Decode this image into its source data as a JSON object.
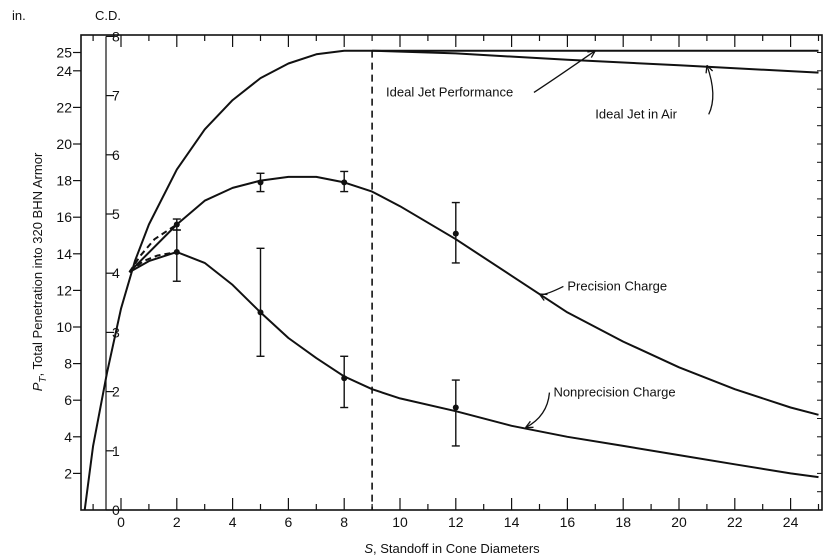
{
  "chart_data": {
    "type": "line",
    "title": "",
    "xlabel": "S, Standoff in Cone Diameters",
    "ylabel": "PT, Total Penetration into 320 BHN Armor",
    "xlim": [
      -1.5,
      25
    ],
    "ylim": [
      0,
      25
    ],
    "y_unit_label": "in.",
    "y2_unit_label": "C.D.",
    "x_ticks": [
      "0",
      "2",
      "4",
      "6",
      "8",
      "10",
      "12",
      "14",
      "16",
      "18",
      "20",
      "22",
      "24"
    ],
    "y_ticks": [
      "2",
      "4",
      "6",
      "8",
      "10",
      "12",
      "14",
      "16",
      "18",
      "20",
      "22",
      "24",
      "25"
    ],
    "y2_ticks": [
      "0",
      "1",
      "2",
      "3",
      "4",
      "5",
      "6",
      "7",
      "8"
    ],
    "vline_x": 9,
    "series": [
      {
        "name": "Ideal Jet Performance",
        "x": [
          -1.3,
          -1.0,
          -0.5,
          0.0,
          0.5,
          1.0,
          2.0,
          3.0,
          4.0,
          5.0,
          6.0,
          7.0,
          8.0,
          9.0,
          12.0,
          16.0,
          20.0,
          25.0
        ],
        "y": [
          0.0,
          3.5,
          7.5,
          11.0,
          13.6,
          15.6,
          18.6,
          20.8,
          22.4,
          23.6,
          24.4,
          24.9,
          25.1,
          25.1,
          25.1,
          25.1,
          25.1,
          25.1
        ]
      },
      {
        "name": "Ideal Jet in Air",
        "x": [
          9.0,
          12.0,
          16.0,
          20.0,
          25.0
        ],
        "y": [
          25.1,
          24.95,
          24.6,
          24.3,
          23.9
        ]
      },
      {
        "name": "Precision Charge",
        "x": [
          0.3,
          2.0,
          3.0,
          4.0,
          5.0,
          6.0,
          7.0,
          8.0,
          9.0,
          10.0,
          12.0,
          14.0,
          16.0,
          18.0,
          20.0,
          22.0,
          24.0,
          25.0
        ],
        "y": [
          13.0,
          15.6,
          16.9,
          17.6,
          18.0,
          18.2,
          18.2,
          17.9,
          17.4,
          16.6,
          14.8,
          12.8,
          10.8,
          9.2,
          7.8,
          6.6,
          5.6,
          5.2
        ]
      },
      {
        "name": "Nonprecision Charge",
        "x": [
          0.3,
          1.0,
          2.0,
          3.0,
          4.0,
          5.0,
          6.0,
          7.0,
          8.0,
          9.0,
          10.0,
          12.0,
          14.0,
          16.0,
          18.0,
          20.0,
          22.0,
          24.0,
          25.0
        ],
        "y": [
          13.0,
          13.6,
          14.1,
          13.5,
          12.3,
          10.8,
          9.4,
          8.3,
          7.3,
          6.6,
          6.1,
          5.4,
          4.6,
          4.0,
          3.5,
          3.0,
          2.5,
          2.0,
          1.8
        ]
      }
    ],
    "dashed_series": [
      {
        "x": [
          0.3,
          0.7,
          1.2,
          2.0
        ],
        "y": [
          13.0,
          13.9,
          14.8,
          15.6
        ]
      },
      {
        "x": [
          0.3,
          0.8,
          1.3,
          2.0
        ],
        "y": [
          13.0,
          13.6,
          13.9,
          14.1
        ]
      }
    ],
    "points": [
      {
        "x": 2,
        "y": 15.6,
        "err": [
          15.3,
          15.9
        ]
      },
      {
        "x": 5,
        "y": 17.9,
        "err": [
          17.4,
          18.4
        ]
      },
      {
        "x": 8,
        "y": 17.9,
        "err": [
          17.4,
          18.5
        ]
      },
      {
        "x": 12,
        "y": 15.1,
        "err": [
          13.5,
          16.8
        ]
      },
      {
        "x": 2,
        "y": 14.1,
        "err": [
          12.5,
          15.3
        ]
      },
      {
        "x": 5,
        "y": 10.8,
        "err": [
          8.4,
          14.3
        ]
      },
      {
        "x": 8,
        "y": 7.2,
        "err": [
          5.6,
          8.4
        ]
      },
      {
        "x": 12,
        "y": 5.6,
        "err": [
          3.5,
          7.1
        ]
      }
    ],
    "annotations": [
      {
        "text": "Ideal Jet Performance",
        "x": 9.5,
        "y": 22.6,
        "target": [
          17.0,
          25.1
        ]
      },
      {
        "text": "Ideal Jet in Air",
        "x": 17.0,
        "y": 21.4,
        "target": [
          21.0,
          24.3
        ]
      },
      {
        "text": "Precision Charge",
        "x": 16.0,
        "y": 12.0,
        "target": [
          15.0,
          11.8
        ]
      },
      {
        "text": "Nonprecision Charge",
        "x": 15.5,
        "y": 6.2,
        "target": [
          14.5,
          4.5
        ]
      }
    ]
  }
}
